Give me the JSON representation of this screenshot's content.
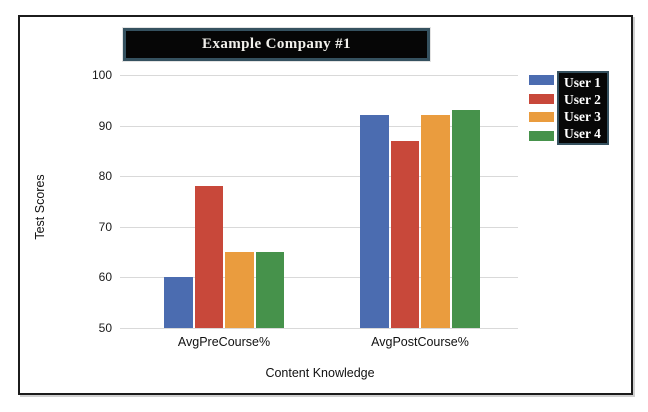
{
  "chart_data": {
    "type": "bar",
    "title": "Example Company #1",
    "categories": [
      "AvgPreCourse%",
      "AvgPostCourse%"
    ],
    "series": [
      {
        "name": "User 1",
        "color": "#4B6CB0",
        "values": [
          60,
          92
        ]
      },
      {
        "name": "User 2",
        "color": "#C8483A",
        "values": [
          78,
          87
        ]
      },
      {
        "name": "User 3",
        "color": "#EA9C3E",
        "values": [
          65,
          92
        ]
      },
      {
        "name": "User 4",
        "color": "#46924B",
        "values": [
          65,
          93
        ]
      }
    ],
    "xlabel": "Content Knowledge",
    "ylabel": "Test Scores",
    "ylim": [
      50,
      100
    ],
    "yticks": [
      100,
      90,
      80,
      70,
      60,
      50
    ],
    "grid": true,
    "legend_position": "right",
    "colors": {
      "title_box_bg": "#060606",
      "title_box_border": "#35515F",
      "legend_box_bg": "#070707",
      "legend_box_border": "#35515F",
      "gridline": "#D9D9D9",
      "frame_border": "#1C1C1C"
    }
  }
}
